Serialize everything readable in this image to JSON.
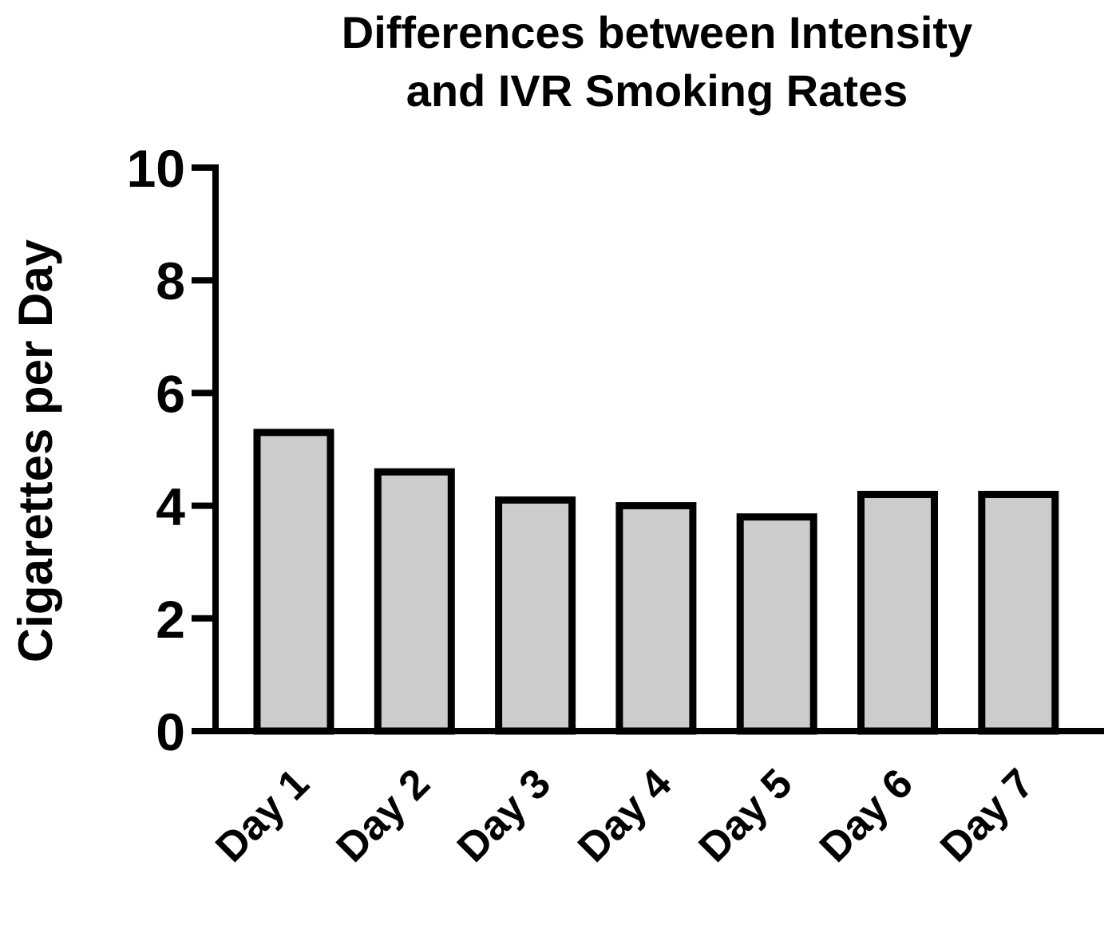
{
  "chart_data": {
    "type": "bar",
    "title_lines": [
      "Differences between Intensity",
      "and IVR Smoking Rates"
    ],
    "xlabel": "",
    "ylabel": "Cigarettes per Day",
    "categories": [
      "Day 1",
      "Day 2",
      "Day 3",
      "Day 4",
      "Day 5",
      "Day 6",
      "Day 7"
    ],
    "values": [
      5.3,
      4.6,
      4.1,
      4.0,
      3.8,
      4.2,
      4.2
    ],
    "ylim": [
      0,
      10
    ],
    "yticks": [
      0,
      2,
      4,
      6,
      8,
      10
    ],
    "grid": false,
    "bar_color": "#cccccc",
    "edge_color": "#000000"
  }
}
